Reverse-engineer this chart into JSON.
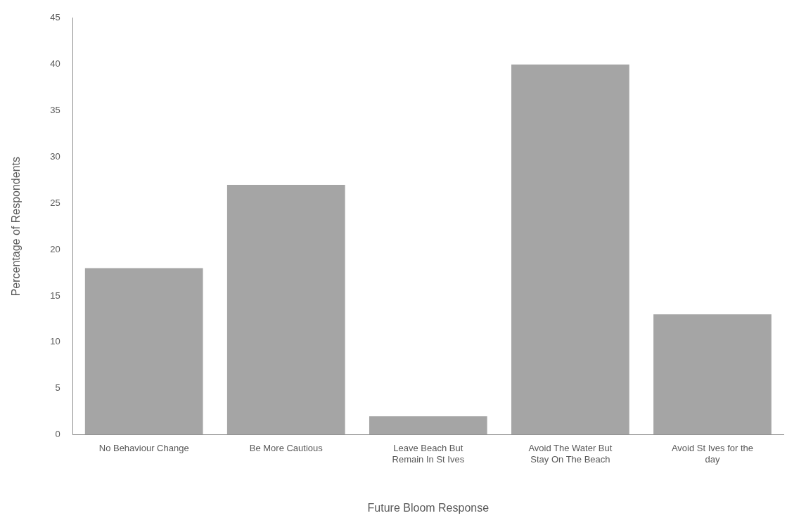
{
  "chart_data": {
    "type": "bar",
    "xlabel": "Future Bloom Response",
    "ylabel": "Percentage of Respondents",
    "categories": [
      "No Behaviour Change",
      "Be More Cautious",
      "Leave Beach But Remain In St Ives",
      "Avoid The Water But Stay On The Beach",
      "Avoid St Ives for the day"
    ],
    "values": [
      18,
      27,
      2,
      40,
      13
    ],
    "color": "#a5a5a5",
    "ylim": [
      0,
      45
    ],
    "yticks": [
      0,
      5,
      10,
      15,
      20,
      25,
      30,
      35,
      40,
      45
    ],
    "grid": false,
    "legend": false
  }
}
